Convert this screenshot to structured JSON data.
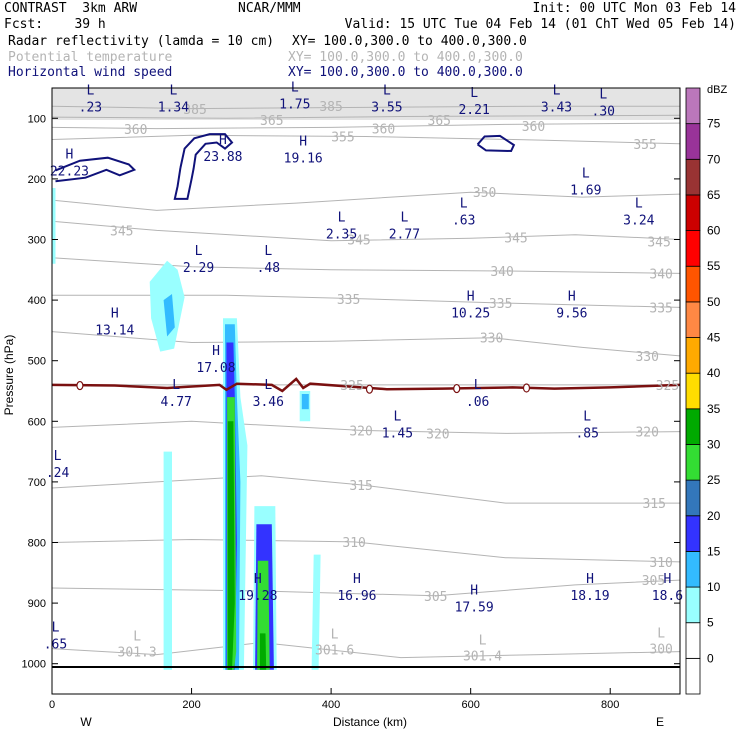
{
  "header": {
    "line1_left": "CONTRAST  3km ARW",
    "line1_center": "NCAR/MMM",
    "line1_right": "Init: 00 UTC Mon 03 Feb 14",
    "line2_left": "Fcst:    39 h",
    "line2_right": "Valid: 15 UTC Tue 04 Feb 14 (01 ChT Wed 05 Feb 14)",
    "fields": [
      {
        "name": "Radar reflectivity (lamda = 10 cm)",
        "xy": "XY= 100.0,300.0 to 400.0,300.0",
        "style": "black"
      },
      {
        "name": "Potential temperature",
        "xy": "XY= 100.0,300.0 to 400.0,300.0",
        "style": "grey"
      },
      {
        "name": "Horizontal wind speed",
        "xy": "XY= 100.0,300.0 to 400.0,300.0",
        "style": "navy"
      }
    ]
  },
  "colors": {
    "theta": "#b4b4b4",
    "wind": "#10127a",
    "freezing": "#7a1010",
    "text_navy": "#10127a"
  },
  "chart_data": {
    "type": "cross-section",
    "xlabel": "Distance (km)",
    "ylabel": "Pressure (hPa)",
    "xlim": [
      0,
      900
    ],
    "ylim": [
      1050,
      50
    ],
    "x_ticks": [
      0,
      200,
      400,
      600,
      800
    ],
    "y_ticks": [
      100,
      200,
      300,
      400,
      500,
      600,
      700,
      800,
      900,
      1000
    ],
    "x_end_labels": {
      "left": "W",
      "right": "E"
    },
    "colorbar": {
      "unit": "dBZ",
      "levels": [
        0,
        5,
        10,
        15,
        20,
        25,
        30,
        35,
        40,
        45,
        50,
        55,
        60,
        65,
        70,
        75
      ],
      "colors": [
        "#ffffff",
        "#99ffff",
        "#33bbff",
        "#3333ff",
        "#3377bb",
        "#33dd33",
        "#00aa00",
        "#ffdd00",
        "#ffaa00",
        "#ff8844",
        "#ff5500",
        "#ff0000",
        "#cc0000",
        "#993333",
        "#993399",
        "#bb77bb"
      ]
    },
    "theta_labels": [
      {
        "value": "385",
        "x": 205,
        "p": 85
      },
      {
        "value": "385",
        "x": 400,
        "p": 80
      },
      {
        "value": "365",
        "x": 315,
        "p": 103
      },
      {
        "value": "365",
        "x": 555,
        "p": 103
      },
      {
        "value": "360",
        "x": 120,
        "p": 118
      },
      {
        "value": "360",
        "x": 475,
        "p": 117
      },
      {
        "value": "360",
        "x": 690,
        "p": 113
      },
      {
        "value": "355",
        "x": 417,
        "p": 130
      },
      {
        "value": "355",
        "x": 850,
        "p": 142
      },
      {
        "value": "350",
        "x": 620,
        "p": 222
      },
      {
        "value": "345",
        "x": 100,
        "p": 285
      },
      {
        "value": "345",
        "x": 440,
        "p": 300
      },
      {
        "value": "345",
        "x": 665,
        "p": 297
      },
      {
        "value": "345",
        "x": 870,
        "p": 303
      },
      {
        "value": "340",
        "x": 645,
        "p": 352
      },
      {
        "value": "340",
        "x": 873,
        "p": 356
      },
      {
        "value": "335",
        "x": 425,
        "p": 398
      },
      {
        "value": "335",
        "x": 643,
        "p": 405
      },
      {
        "value": "335",
        "x": 873,
        "p": 412
      },
      {
        "value": "330",
        "x": 630,
        "p": 462
      },
      {
        "value": "330",
        "x": 853,
        "p": 492
      },
      {
        "value": "325",
        "x": 430,
        "p": 540
      },
      {
        "value": "325",
        "x": 882,
        "p": 540
      },
      {
        "value": "320",
        "x": 443,
        "p": 615
      },
      {
        "value": "320",
        "x": 553,
        "p": 620
      },
      {
        "value": "320",
        "x": 853,
        "p": 617
      },
      {
        "value": "315",
        "x": 443,
        "p": 705
      },
      {
        "value": "315",
        "x": 863,
        "p": 735
      },
      {
        "value": "310",
        "x": 433,
        "p": 799
      },
      {
        "value": "310",
        "x": 873,
        "p": 832
      },
      {
        "value": "305",
        "x": 550,
        "p": 888
      },
      {
        "value": "305",
        "x": 862,
        "p": 862
      }
    ],
    "theta_lows": [
      {
        "x": 122,
        "p": 988,
        "value": "301.3"
      },
      {
        "x": 405,
        "p": 985,
        "value": "301.6"
      },
      {
        "x": 617,
        "p": 995,
        "value": "301.4"
      },
      {
        "x": 873,
        "p": 983,
        "value": "300"
      }
    ],
    "wind_extrema": [
      {
        "type": "L",
        "value": ".23",
        "x": 55,
        "p": 82
      },
      {
        "type": "L",
        "value": "1.34",
        "x": 174,
        "p": 82
      },
      {
        "type": "L",
        "value": "1.75",
        "x": 348,
        "p": 77
      },
      {
        "type": "L",
        "value": "3.55",
        "x": 480,
        "p": 82
      },
      {
        "type": "L",
        "value": "2.21",
        "x": 605,
        "p": 86
      },
      {
        "type": "L",
        "value": "3.43",
        "x": 723,
        "p": 82
      },
      {
        "type": "L",
        "value": ".30",
        "x": 790,
        "p": 89
      },
      {
        "type": "H",
        "value": "23.88",
        "x": 245,
        "p": 164
      },
      {
        "type": "H",
        "value": "19.16",
        "x": 360,
        "p": 166
      },
      {
        "type": "H",
        "value": "22.23",
        "x": 25,
        "p": 188
      },
      {
        "type": "L",
        "value": "1.69",
        "x": 765,
        "p": 219
      },
      {
        "type": "L",
        "value": ".63",
        "x": 590,
        "p": 269
      },
      {
        "type": "L",
        "value": "3.24",
        "x": 841,
        "p": 269
      },
      {
        "type": "L",
        "value": "2.35",
        "x": 415,
        "p": 292
      },
      {
        "type": "L",
        "value": "2.77",
        "x": 505,
        "p": 292
      },
      {
        "type": "L",
        "value": "2.29",
        "x": 210,
        "p": 347
      },
      {
        "type": "L",
        "value": ".48",
        "x": 310,
        "p": 347
      },
      {
        "type": "H",
        "value": "10.25",
        "x": 600,
        "p": 422
      },
      {
        "type": "H",
        "value": "9.56",
        "x": 745,
        "p": 422
      },
      {
        "type": "H",
        "value": "13.14",
        "x": 90,
        "p": 450
      },
      {
        "type": "H",
        "value": "17.08",
        "x": 235,
        "p": 512
      },
      {
        "type": "L",
        "value": "4.77",
        "x": 178,
        "p": 568
      },
      {
        "type": "L",
        "value": "3.46",
        "x": 310,
        "p": 568
      },
      {
        "type": "L",
        "value": ".06",
        "x": 610,
        "p": 568
      },
      {
        "type": "L",
        "value": "1.45",
        "x": 495,
        "p": 620
      },
      {
        "type": "L",
        "value": ".85",
        "x": 767,
        "p": 620
      },
      {
        "type": "L",
        "value": ".24",
        "x": 8,
        "p": 685
      },
      {
        "type": "H",
        "value": "19.28",
        "x": 295,
        "p": 888
      },
      {
        "type": "H",
        "value": "16.96",
        "x": 437,
        "p": 888
      },
      {
        "type": "H",
        "value": "17.59",
        "x": 605,
        "p": 907
      },
      {
        "type": "H",
        "value": "18.19",
        "x": 771,
        "p": 888
      },
      {
        "type": "H",
        "value": "18.6",
        "x": 882,
        "p": 888
      },
      {
        "type": "L",
        "value": ".65",
        "x": 5,
        "p": 968
      }
    ],
    "wind_contours": [
      [
        [
          5,
          186
        ],
        [
          40,
          170
        ],
        [
          80,
          165
        ],
        [
          110,
          176
        ],
        [
          118,
          185
        ],
        [
          97,
          194
        ],
        [
          78,
          185
        ],
        [
          48,
          198
        ],
        [
          5,
          204
        ]
      ],
      [
        [
          184,
          182
        ],
        [
          180,
          212
        ],
        [
          176,
          233
        ],
        [
          194,
          233
        ],
        [
          200,
          200
        ],
        [
          203,
          183
        ],
        [
          206,
          160
        ],
        [
          220,
          142
        ],
        [
          236,
          140
        ],
        [
          248,
          150
        ],
        [
          258,
          140
        ],
        [
          248,
          126
        ],
        [
          226,
          126
        ],
        [
          204,
          133
        ],
        [
          190,
          150
        ],
        [
          184,
          182
        ]
      ],
      [
        [
          610,
          143
        ],
        [
          622,
          153
        ],
        [
          658,
          154
        ],
        [
          662,
          144
        ],
        [
          642,
          129
        ],
        [
          620,
          130
        ],
        [
          610,
          143
        ]
      ]
    ],
    "freezing_level": [
      [
        0,
        540
      ],
      [
        90,
        541
      ],
      [
        165,
        545
      ],
      [
        240,
        540
      ],
      [
        250,
        548
      ],
      [
        265,
        538
      ],
      [
        315,
        540
      ],
      [
        330,
        550
      ],
      [
        350,
        530
      ],
      [
        360,
        545
      ],
      [
        370,
        538
      ],
      [
        480,
        547
      ],
      [
        560,
        546
      ],
      [
        660,
        544
      ],
      [
        720,
        546
      ],
      [
        800,
        544
      ],
      [
        900,
        540
      ]
    ],
    "freezing_markers": [
      [
        40,
        541
      ],
      [
        455,
        547
      ],
      [
        580,
        546
      ],
      [
        680,
        545
      ]
    ],
    "reflectivity": [
      {
        "dbz": 5,
        "poly": [
          [
            0,
            215
          ],
          [
            5,
            215
          ],
          [
            5,
            340
          ],
          [
            0,
            340
          ]
        ]
      },
      {
        "dbz": 5,
        "poly": [
          [
            140,
            370
          ],
          [
            165,
            335
          ],
          [
            180,
            350
          ],
          [
            190,
            395
          ],
          [
            175,
            480
          ],
          [
            155,
            485
          ],
          [
            142,
            430
          ]
        ]
      },
      {
        "dbz": 10,
        "poly": [
          [
            160,
            400
          ],
          [
            172,
            390
          ],
          [
            176,
            445
          ],
          [
            165,
            460
          ]
        ]
      },
      {
        "dbz": 5,
        "poly": [
          [
            160,
            650
          ],
          [
            172,
            650
          ],
          [
            172,
            1010
          ],
          [
            160,
            1010
          ]
        ]
      },
      {
        "dbz": 5,
        "poly": [
          [
            245,
            430
          ],
          [
            265,
            430
          ],
          [
            270,
            560
          ],
          [
            280,
            640
          ],
          [
            275,
            1010
          ],
          [
            245,
            1010
          ]
        ]
      },
      {
        "dbz": 10,
        "poly": [
          [
            248,
            440
          ],
          [
            262,
            440
          ],
          [
            265,
            560
          ],
          [
            270,
            700
          ],
          [
            268,
            1010
          ],
          [
            248,
            1010
          ]
        ]
      },
      {
        "dbz": 15,
        "poly": [
          [
            250,
            470
          ],
          [
            260,
            470
          ],
          [
            262,
            560
          ],
          [
            265,
            800
          ],
          [
            262,
            1010
          ],
          [
            250,
            1010
          ]
        ]
      },
      {
        "dbz": 25,
        "poly": [
          [
            251,
            560
          ],
          [
            262,
            560
          ],
          [
            264,
            980
          ],
          [
            261,
            1010
          ],
          [
            251,
            1010
          ]
        ]
      },
      {
        "dbz": 30,
        "poly": [
          [
            252,
            600
          ],
          [
            260,
            600
          ],
          [
            262,
            900
          ],
          [
            258,
            1010
          ],
          [
            252,
            1010
          ]
        ]
      },
      {
        "dbz": 5,
        "poly": [
          [
            290,
            740
          ],
          [
            320,
            740
          ],
          [
            322,
            1010
          ],
          [
            288,
            1010
          ]
        ]
      },
      {
        "dbz": 15,
        "poly": [
          [
            293,
            770
          ],
          [
            315,
            770
          ],
          [
            318,
            1010
          ],
          [
            291,
            1010
          ]
        ]
      },
      {
        "dbz": 25,
        "poly": [
          [
            295,
            830
          ],
          [
            310,
            830
          ],
          [
            312,
            1010
          ],
          [
            294,
            1010
          ]
        ]
      },
      {
        "dbz": 30,
        "poly": [
          [
            298,
            950
          ],
          [
            306,
            950
          ],
          [
            307,
            1010
          ],
          [
            298,
            1010
          ]
        ]
      },
      {
        "dbz": 5,
        "poly": [
          [
            355,
            550
          ],
          [
            370,
            550
          ],
          [
            370,
            600
          ],
          [
            355,
            600
          ]
        ]
      },
      {
        "dbz": 10,
        "poly": [
          [
            358,
            555
          ],
          [
            368,
            555
          ],
          [
            368,
            580
          ],
          [
            358,
            580
          ]
        ]
      },
      {
        "dbz": 5,
        "poly": [
          [
            375,
            820
          ],
          [
            385,
            820
          ],
          [
            382,
            1010
          ],
          [
            372,
            1010
          ]
        ]
      }
    ]
  }
}
